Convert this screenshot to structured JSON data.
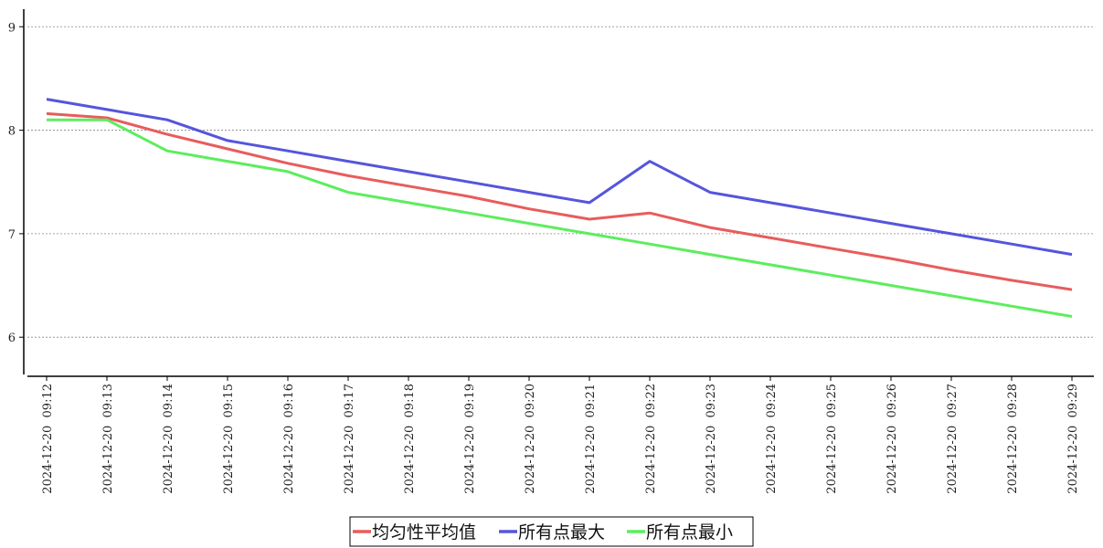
{
  "chart_data": {
    "type": "line",
    "x": [
      "2024-12-20  09:12",
      "2024-12-20  09:13",
      "2024-12-20  09:14",
      "2024-12-20  09:15",
      "2024-12-20  09:16",
      "2024-12-20  09:17",
      "2024-12-20  09:18",
      "2024-12-20  09:19",
      "2024-12-20  09:20",
      "2024-12-20  09:21",
      "2024-12-20  09:22",
      "2024-12-20  09:23",
      "2024-12-20  09:24",
      "2024-12-20  09:25",
      "2024-12-20  09:26",
      "2024-12-20  09:27",
      "2024-12-20  09:28",
      "2024-12-20  09:29"
    ],
    "yticks": [
      6,
      7,
      8,
      9
    ],
    "ylim": [
      5.64,
      9.17
    ],
    "grid": true,
    "legend_position": "bottom-center",
    "series": [
      {
        "name": "均匀性平均值",
        "color": "#e85c5c",
        "values": [
          8.16,
          8.12,
          7.96,
          7.82,
          7.68,
          7.56,
          7.46,
          7.36,
          7.24,
          7.14,
          7.2,
          7.06,
          6.96,
          6.86,
          6.76,
          6.65,
          6.55,
          6.46
        ]
      },
      {
        "name": "所有点最大",
        "color": "#5555dd",
        "values": [
          8.3,
          8.2,
          8.1,
          7.9,
          7.8,
          7.7,
          7.6,
          7.5,
          7.4,
          7.3,
          7.7,
          7.4,
          7.3,
          7.2,
          7.1,
          7.0,
          6.9,
          6.8
        ]
      },
      {
        "name": "所有点最小",
        "color": "#5ded5d",
        "values": [
          8.1,
          8.1,
          7.8,
          7.7,
          7.6,
          7.4,
          7.3,
          7.2,
          7.1,
          7.0,
          6.9,
          6.8,
          6.7,
          6.6,
          6.5,
          6.4,
          6.3,
          6.2
        ]
      }
    ]
  }
}
